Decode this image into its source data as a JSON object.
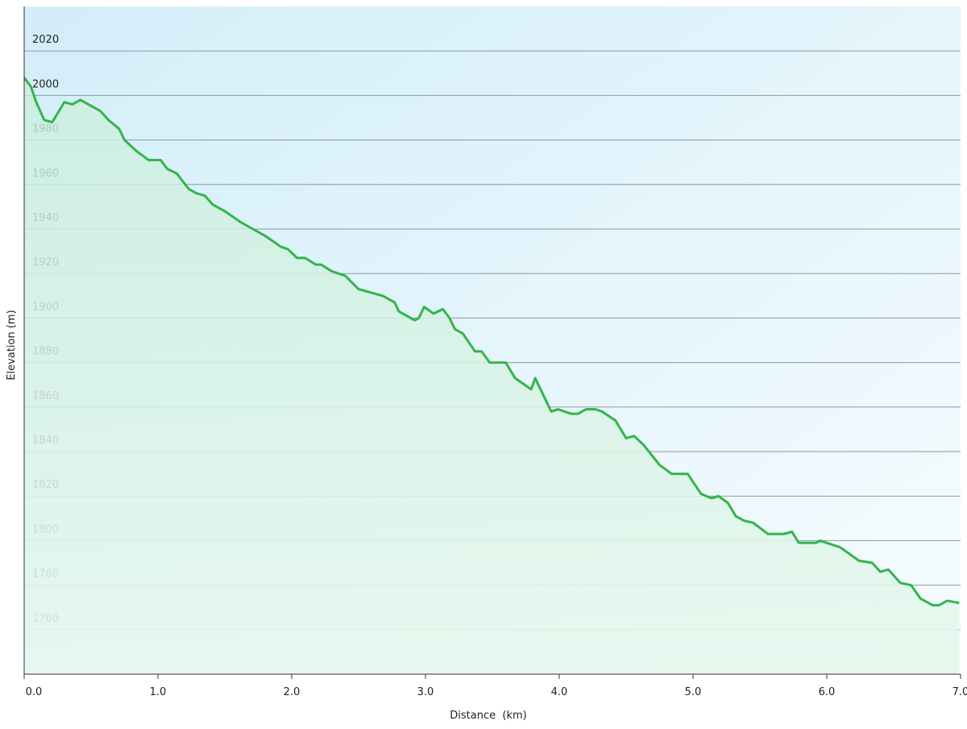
{
  "chart_data": {
    "type": "line",
    "x_label": "Distance  (km)",
    "y_label": "Elevation (m)",
    "xlim": [
      0,
      7
    ],
    "ylim": [
      1740,
      2040
    ],
    "xticks": [
      {
        "value": 0,
        "label": "0.0"
      },
      {
        "value": 1,
        "label": "1.0"
      },
      {
        "value": 2,
        "label": "2.0"
      },
      {
        "value": 3,
        "label": "3.0"
      },
      {
        "value": 4,
        "label": "4.0"
      },
      {
        "value": 5,
        "label": "5.0"
      },
      {
        "value": 6,
        "label": "6.0"
      },
      {
        "value": 7,
        "label": "7.0"
      }
    ],
    "yticks": [
      1760,
      1780,
      1800,
      1820,
      1840,
      1860,
      1880,
      1900,
      1920,
      1940,
      1960,
      1980,
      2000,
      2020
    ],
    "grid": true,
    "x": [
      0,
      0.05,
      0.09,
      0.15,
      0.21,
      0.3,
      0.36,
      0.42,
      0.51,
      0.57,
      0.63,
      0.71,
      0.75,
      0.84,
      0.93,
      1.02,
      1.07,
      1.14,
      1.23,
      1.29,
      1.35,
      1.41,
      1.5,
      1.62,
      1.71,
      1.8,
      1.92,
      1.97,
      2.04,
      2.1,
      2.18,
      2.22,
      2.3,
      2.4,
      2.5,
      2.62,
      2.68,
      2.77,
      2.8,
      2.89,
      2.92,
      2.95,
      2.99,
      3.06,
      3.13,
      3.18,
      3.22,
      3.28,
      3.37,
      3.42,
      3.48,
      3.6,
      3.67,
      3.79,
      3.82,
      3.94,
      3.99,
      4.09,
      4.14,
      4.2,
      4.27,
      4.32,
      4.42,
      4.5,
      4.56,
      4.63,
      4.75,
      4.84,
      4.96,
      5.06,
      5.14,
      5.19,
      5.26,
      5.32,
      5.38,
      5.45,
      5.56,
      5.68,
      5.74,
      5.79,
      5.86,
      5.92,
      5.95,
      6.1,
      6.24,
      6.34,
      6.4,
      6.46,
      6.55,
      6.63,
      6.7,
      6.79,
      6.84,
      6.9,
      6.99
    ],
    "series": [
      {
        "color": "#33b54a",
        "values": [
          2008,
          2004,
          1997,
          1989,
          1988,
          1997,
          1996,
          1998,
          1995,
          1993,
          1989,
          1985,
          1980,
          1975,
          1971,
          1971,
          1967,
          1965,
          1958,
          1956,
          1955,
          1951,
          1948,
          1943,
          1940,
          1937,
          1932,
          1931,
          1927,
          1927,
          1924,
          1924,
          1921,
          1919,
          1913,
          1911,
          1910,
          1907,
          1903,
          1900,
          1899,
          1900,
          1905,
          1902,
          1904,
          1900,
          1895,
          1893,
          1885,
          1885,
          1880,
          1880,
          1873,
          1868,
          1873,
          1858,
          1859,
          1857,
          1857,
          1859,
          1859,
          1858,
          1854,
          1846,
          1847,
          1843,
          1834,
          1830,
          1830,
          1821,
          1819,
          1820,
          1817,
          1811,
          1809,
          1808,
          1803,
          1803,
          1804,
          1799,
          1799,
          1799,
          1800,
          1797,
          1791,
          1790,
          1786,
          1787,
          1781,
          1780,
          1774,
          1771,
          1771,
          1773,
          1772
        ]
      }
    ]
  }
}
